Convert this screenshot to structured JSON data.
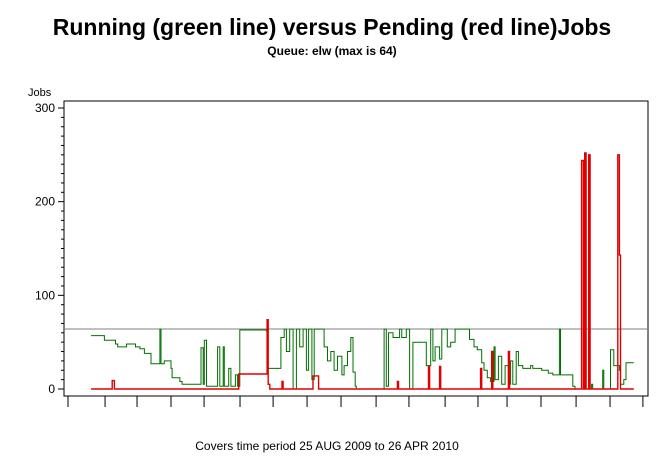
{
  "chart_data": {
    "type": "line",
    "title": "Running (green line) versus Pending (red line)Jobs",
    "subtitle": "Queue: elw (max is 64)",
    "ylabel": "Jobs",
    "xlabel": "",
    "footnote": "Covers time period 25 AUG 2009 to 26 APR 2010",
    "ylim": [
      0,
      300
    ],
    "yticks": [
      0,
      100,
      200,
      300
    ],
    "yminor_step": 10,
    "xlim": [
      -12.2,
      250.9
    ],
    "xticks_days": [
      -10.4,
      6.3,
      20.7,
      36,
      50.9,
      67.1,
      82,
      97.3,
      112.6,
      128.4,
      143.2,
      159.5,
      174.3,
      187.4,
      202.7,
      218.5,
      233.8,
      248.6
    ],
    "x_unit": "days since 25 AUG 2009",
    "reference_line": {
      "value": 64,
      "color": "#808080"
    },
    "series": [
      {
        "name": "Running",
        "color": "#007000",
        "points": [
          [
            0,
            57
          ],
          [
            6,
            52
          ],
          [
            11,
            48
          ],
          [
            12,
            45
          ],
          [
            16,
            48
          ],
          [
            20,
            45
          ],
          [
            22,
            43
          ],
          [
            24,
            38
          ],
          [
            27,
            27
          ],
          [
            31,
            64
          ],
          [
            31.5,
            27
          ],
          [
            33,
            30
          ],
          [
            36,
            22
          ],
          [
            36.5,
            12
          ],
          [
            40,
            8
          ],
          [
            41,
            5
          ],
          [
            49.5,
            44
          ],
          [
            50.5,
            5
          ],
          [
            51,
            52
          ],
          [
            52,
            3
          ],
          [
            57,
            45
          ],
          [
            58,
            3
          ],
          [
            59.5,
            45
          ],
          [
            60,
            3
          ],
          [
            62,
            22
          ],
          [
            63,
            3
          ],
          [
            65,
            15
          ],
          [
            66,
            3
          ],
          [
            67,
            63
          ],
          [
            79,
            62
          ],
          [
            79.5,
            22
          ],
          [
            85,
            22
          ],
          [
            85.5,
            55
          ],
          [
            87,
            64
          ],
          [
            88,
            40
          ],
          [
            89.5,
            64
          ],
          [
            91,
            0
          ],
          [
            92.5,
            64
          ],
          [
            94,
            45
          ],
          [
            95.5,
            64
          ],
          [
            97,
            20
          ],
          [
            98,
            64
          ],
          [
            99.5,
            10
          ],
          [
            100.5,
            64
          ],
          [
            105,
            45
          ],
          [
            106.5,
            30
          ],
          [
            108,
            40
          ],
          [
            109.5,
            20
          ],
          [
            111,
            35
          ],
          [
            113,
            15
          ],
          [
            114,
            25
          ],
          [
            115.5,
            40
          ],
          [
            117,
            55
          ],
          [
            118,
            18
          ],
          [
            119,
            3
          ],
          [
            119.5,
            0
          ],
          [
            132,
            64
          ],
          [
            133,
            3
          ],
          [
            134,
            60
          ],
          [
            136,
            55
          ],
          [
            139,
            64
          ],
          [
            140,
            55
          ],
          [
            142,
            64
          ],
          [
            143.5,
            0
          ],
          [
            145,
            50
          ],
          [
            151,
            25
          ],
          [
            153,
            64
          ],
          [
            154,
            30
          ],
          [
            155,
            45
          ],
          [
            157,
            32
          ],
          [
            158,
            64
          ],
          [
            160.5,
            45
          ],
          [
            162,
            50
          ],
          [
            164,
            64
          ],
          [
            170.5,
            53
          ],
          [
            172.5,
            45
          ],
          [
            174,
            42
          ],
          [
            176,
            28
          ],
          [
            177,
            20
          ],
          [
            178.5,
            12
          ],
          [
            180,
            8
          ],
          [
            181.5,
            45
          ],
          [
            182,
            10
          ],
          [
            183.5,
            35
          ],
          [
            185,
            5
          ],
          [
            186.5,
            25
          ],
          [
            188,
            5
          ],
          [
            189,
            30
          ],
          [
            190,
            5
          ],
          [
            191.5,
            40
          ],
          [
            192.5,
            25
          ],
          [
            194.5,
            22
          ],
          [
            198,
            25
          ],
          [
            199,
            22
          ],
          [
            203,
            20
          ],
          [
            206,
            17
          ],
          [
            208,
            15
          ],
          [
            211,
            64
          ],
          [
            211.5,
            15
          ],
          [
            217,
            3
          ],
          [
            218,
            0
          ],
          [
            225.5,
            5
          ],
          [
            226,
            0
          ],
          [
            230.5,
            20
          ],
          [
            231,
            0
          ],
          [
            234,
            42
          ],
          [
            235.5,
            25
          ],
          [
            238,
            20
          ],
          [
            238.5,
            5
          ],
          [
            240,
            10
          ],
          [
            241,
            28
          ],
          [
            244.5,
            28
          ]
        ]
      },
      {
        "name": "Pending",
        "color": "#e00000",
        "points": [
          [
            0,
            0
          ],
          [
            9.5,
            9
          ],
          [
            10.5,
            0
          ],
          [
            66.5,
            16
          ],
          [
            78.5,
            16
          ],
          [
            79.3,
            74
          ],
          [
            79.8,
            5
          ],
          [
            80.5,
            0
          ],
          [
            86,
            8
          ],
          [
            86.5,
            0
          ],
          [
            100,
            14
          ],
          [
            102.5,
            0
          ],
          [
            138,
            8
          ],
          [
            138.5,
            0
          ],
          [
            152,
            24
          ],
          [
            152.5,
            0
          ],
          [
            157,
            24
          ],
          [
            157.5,
            0
          ],
          [
            175.5,
            22
          ],
          [
            176,
            0
          ],
          [
            180.5,
            40
          ],
          [
            181,
            0
          ],
          [
            188,
            40
          ],
          [
            188.5,
            0
          ],
          [
            221,
            244
          ],
          [
            221.8,
            0
          ],
          [
            222.4,
            252
          ],
          [
            223,
            0
          ],
          [
            224.2,
            250
          ],
          [
            224.8,
            0
          ],
          [
            237.3,
            250
          ],
          [
            238,
            143
          ],
          [
            238.5,
            0
          ],
          [
            244.5,
            0
          ]
        ]
      }
    ]
  }
}
